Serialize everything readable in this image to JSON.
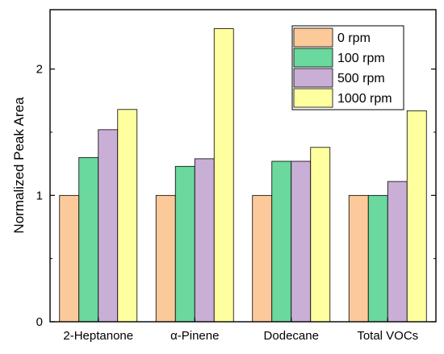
{
  "chart_data": {
    "type": "bar",
    "title": "",
    "xlabel": "",
    "ylabel": "Normalized Peak Area",
    "ylim": [
      0,
      2.47
    ],
    "yticks": [
      0,
      1,
      2
    ],
    "categories": [
      "2-Heptanone",
      "α-Pinene",
      "Dodecane",
      "Total VOCs"
    ],
    "series": [
      {
        "name": "0 rpm",
        "color": "#fcc99b",
        "values": [
          1.0,
          1.0,
          1.0,
          1.0
        ]
      },
      {
        "name": "100 rpm",
        "color": "#6bd89e",
        "values": [
          1.3,
          1.23,
          1.27,
          1.0
        ]
      },
      {
        "name": "500 rpm",
        "color": "#c9aed6",
        "values": [
          1.52,
          1.29,
          1.27,
          1.11
        ]
      },
      {
        "name": "1000 rpm",
        "color": "#feff9f",
        "values": [
          1.68,
          2.32,
          1.38,
          1.67
        ]
      }
    ],
    "legend": "top-right",
    "grid": false
  }
}
